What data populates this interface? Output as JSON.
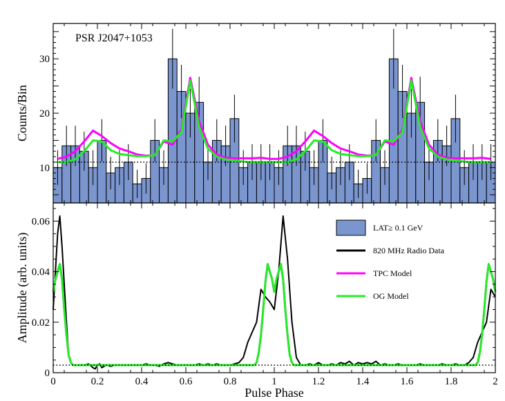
{
  "chart_data": [
    {
      "type": "histogram",
      "title": "PSR J2047+1053",
      "xlabel": "",
      "ylabel": "Counts/Bin",
      "xlim": [
        0,
        2
      ],
      "ylim": [
        3.5,
        36.5
      ],
      "yticks": [
        10,
        20,
        30
      ],
      "bin_width": 0.04,
      "counts": [
        10,
        14,
        14,
        13,
        10,
        15,
        9,
        10,
        11,
        7,
        8,
        15,
        10,
        30,
        24,
        20,
        22,
        11,
        15,
        14,
        19,
        10,
        11,
        11,
        11,
        10,
        14,
        14,
        13,
        10,
        15,
        9,
        10,
        11,
        7,
        8,
        15,
        10,
        30,
        24,
        20,
        22,
        11,
        15,
        14,
        19,
        10,
        11,
        11,
        11
      ],
      "errors": [
        3.2,
        3.7,
        3.7,
        3.6,
        3.2,
        3.9,
        3.0,
        3.2,
        3.3,
        2.6,
        2.8,
        3.9,
        3.2,
        5.5,
        4.9,
        4.5,
        4.7,
        3.3,
        3.9,
        3.7,
        4.4,
        3.2,
        3.3,
        3.3,
        3.3,
        3.2,
        3.7,
        3.7,
        3.6,
        3.2,
        3.9,
        3.0,
        3.2,
        3.3,
        2.6,
        2.8,
        3.9,
        3.2,
        5.5,
        4.9,
        4.5,
        4.7,
        3.3,
        3.9,
        3.7,
        4.4,
        3.2,
        3.3,
        3.3,
        3.3
      ],
      "background_level": 11,
      "series": [
        {
          "name": "TPC Model",
          "color": "#ff00ff",
          "x": [
            0.02,
            0.06,
            0.1,
            0.14,
            0.18,
            0.22,
            0.26,
            0.3,
            0.34,
            0.38,
            0.42,
            0.46,
            0.5,
            0.54,
            0.58,
            0.62,
            0.66,
            0.7,
            0.74,
            0.78,
            0.82,
            0.86,
            0.9,
            0.94,
            0.98,
            1.02,
            1.06,
            1.1,
            1.14,
            1.18,
            1.22,
            1.26,
            1.3,
            1.34,
            1.38,
            1.42,
            1.46,
            1.5,
            1.54,
            1.58,
            1.62,
            1.66,
            1.7,
            1.74,
            1.78,
            1.82,
            1.86,
            1.9,
            1.94,
            1.98
          ],
          "y": [
            11.6,
            12,
            13,
            14.8,
            16.8,
            15.8,
            14.5,
            13.5,
            13,
            12.4,
            12.2,
            12.3,
            14.8,
            14.2,
            17,
            26.5,
            18.5,
            14.2,
            12.4,
            11.8,
            11.7,
            11.7,
            11.7,
            11.8,
            11.6,
            11.6,
            12,
            13,
            14.8,
            16.8,
            15.8,
            14.5,
            13.5,
            13,
            12.4,
            12.2,
            12.3,
            14.8,
            14.2,
            17,
            26.5,
            18.5,
            14.2,
            12.4,
            11.8,
            11.7,
            11.7,
            11.7,
            11.8,
            11.6
          ]
        },
        {
          "name": "OG Model",
          "color": "#22ee22",
          "x": [
            0.02,
            0.06,
            0.1,
            0.14,
            0.18,
            0.22,
            0.26,
            0.3,
            0.34,
            0.38,
            0.42,
            0.46,
            0.5,
            0.54,
            0.58,
            0.62,
            0.66,
            0.7,
            0.74,
            0.78,
            0.82,
            0.86,
            0.9,
            0.94,
            0.98,
            1.02,
            1.06,
            1.1,
            1.14,
            1.18,
            1.22,
            1.26,
            1.3,
            1.34,
            1.38,
            1.42,
            1.46,
            1.5,
            1.54,
            1.58,
            1.62,
            1.66,
            1.7,
            1.74,
            1.78,
            1.82,
            1.86,
            1.9,
            1.94,
            1.98
          ],
          "y": [
            11,
            11,
            11.5,
            13,
            15,
            14.8,
            13.2,
            12.5,
            12.3,
            12.1,
            12.1,
            12.3,
            15,
            14.8,
            16.5,
            26,
            17.5,
            13.5,
            12,
            11.5,
            11.3,
            11.1,
            11,
            11,
            11,
            11,
            11,
            11.5,
            13,
            15,
            14.8,
            13.2,
            12.5,
            12.3,
            12.1,
            12.1,
            12.3,
            15,
            14.8,
            16.5,
            26,
            17.5,
            13.5,
            12,
            11.5,
            11.3,
            11.1,
            11,
            11,
            11
          ]
        }
      ]
    },
    {
      "type": "line",
      "title": "",
      "xlabel": "Pulse Phase",
      "ylabel": "Amplitude (arb. units)",
      "xlim": [
        0,
        2
      ],
      "ylim": [
        0,
        0.0672
      ],
      "xticks": [
        0,
        0.2,
        0.4,
        0.6,
        0.8,
        1,
        1.2,
        1.4,
        1.6,
        1.8,
        2
      ],
      "xtick_labels": [
        "0",
        "0.2",
        "0.4",
        "0.6",
        "0.8",
        "1",
        "1.2",
        "1.4",
        "1.6",
        "1.8",
        "2"
      ],
      "yticks": [
        0,
        0.02,
        0.04,
        0.06
      ],
      "ytick_labels": [
        "0",
        "0.02",
        "0.04",
        "0.06"
      ],
      "baseline_level": 0.003,
      "series": [
        {
          "name": "820 MHz Radio Data",
          "color": "#000000",
          "x": [
            0,
            0.01,
            0.02,
            0.03,
            0.04,
            0.05,
            0.06,
            0.07,
            0.08,
            0.09,
            0.1,
            0.11,
            0.12,
            0.14,
            0.16,
            0.18,
            0.19,
            0.2,
            0.21,
            0.22,
            0.24,
            0.26,
            0.28,
            0.3,
            0.34,
            0.38,
            0.4,
            0.42,
            0.44,
            0.46,
            0.48,
            0.5,
            0.52,
            0.54,
            0.56,
            0.6,
            0.64,
            0.66,
            0.68,
            0.7,
            0.72,
            0.74,
            0.76,
            0.78,
            0.8,
            0.82,
            0.84,
            0.86,
            0.88,
            0.9,
            0.92,
            0.94,
            0.96,
            0.98,
            1,
            1.02,
            1.04,
            1.06,
            1.08,
            1.1,
            1.12,
            1.14,
            1.16,
            1.18,
            1.2,
            1.22,
            1.24,
            1.26,
            1.28,
            1.3,
            1.32,
            1.34,
            1.36,
            1.38,
            1.4,
            1.42,
            1.44,
            1.46,
            1.48,
            1.5,
            1.52,
            1.54,
            1.56,
            1.58,
            1.6,
            1.62,
            1.64,
            1.66,
            1.68,
            1.7,
            1.72,
            1.74,
            1.76,
            1.78,
            1.8,
            1.82,
            1.84,
            1.86,
            1.88,
            1.9,
            1.92,
            1.94,
            1.96,
            1.98,
            2
          ],
          "y": [
            0.025,
            0.04,
            0.055,
            0.062,
            0.05,
            0.035,
            0.02,
            0.007,
            0.004,
            0.003,
            0.003,
            0.003,
            0.003,
            0.003,
            0.0035,
            0.002,
            0.0015,
            0.003,
            0.0035,
            0.002,
            0.003,
            0.0025,
            0.003,
            0.003,
            0.003,
            0.003,
            0.003,
            0.0035,
            0.003,
            0.003,
            0.0025,
            0.0035,
            0.004,
            0.0035,
            0.003,
            0.003,
            0.003,
            0.0035,
            0.003,
            0.0035,
            0.003,
            0.0035,
            0.003,
            0.003,
            0.003,
            0.0035,
            0.004,
            0.006,
            0.012,
            0.016,
            0.02,
            0.033,
            0.03,
            0.028,
            0.025,
            0.04,
            0.062,
            0.045,
            0.02,
            0.006,
            0.003,
            0.003,
            0.0035,
            0.003,
            0.004,
            0.003,
            0.003,
            0.0035,
            0.003,
            0.004,
            0.0035,
            0.0045,
            0.003,
            0.004,
            0.0035,
            0.004,
            0.0035,
            0.0045,
            0.003,
            0.0035,
            0.003,
            0.003,
            0.0035,
            0.003,
            0.003,
            0.003,
            0.003,
            0.0035,
            0.003,
            0.003,
            0.003,
            0.003,
            0.0035,
            0.003,
            0.003,
            0.0035,
            0.003,
            0.003,
            0.004,
            0.006,
            0.012,
            0.016,
            0.02,
            0.033,
            0.03
          ]
        },
        {
          "name": "TPC Model",
          "color": "#ff00ff",
          "x": [
            0,
            0.01,
            0.02,
            0.03,
            0.04,
            0.05,
            0.06,
            0.07,
            0.08,
            0.09,
            0.1,
            0.12,
            0.91,
            0.92,
            0.93,
            0.94,
            0.95,
            0.96,
            0.97,
            0.98,
            0.99,
            1,
            1.01,
            1.02,
            1.03,
            1.04,
            1.05,
            1.06,
            1.07,
            1.08,
            1.09,
            1.1,
            1.12,
            1.91,
            1.92,
            1.93,
            1.94,
            1.95,
            1.96,
            1.97,
            1.98,
            1.99,
            2
          ],
          "y": [
            0.032,
            0.037,
            0.04,
            0.043,
            0.037,
            0.025,
            0.015,
            0.007,
            0.004,
            0.003,
            0.003,
            0.003,
            0.003,
            0.004,
            0.008,
            0.015,
            0.025,
            0.036,
            0.043,
            0.04,
            0.037,
            0.032,
            0.037,
            0.04,
            0.043,
            0.037,
            0.025,
            0.015,
            0.007,
            0.004,
            0.003,
            0.003,
            0.003,
            0.003,
            0.004,
            0.008,
            0.015,
            0.025,
            0.036,
            0.043,
            0.04,
            0.037,
            0.032
          ]
        },
        {
          "name": "OG Model",
          "color": "#22ee22",
          "x": [
            0,
            0.01,
            0.02,
            0.03,
            0.04,
            0.05,
            0.06,
            0.07,
            0.08,
            0.09,
            0.1,
            0.12,
            0.91,
            0.92,
            0.93,
            0.94,
            0.95,
            0.96,
            0.97,
            0.98,
            0.99,
            1,
            1.01,
            1.02,
            1.03,
            1.04,
            1.05,
            1.06,
            1.07,
            1.08,
            1.09,
            1.1,
            1.12,
            1.91,
            1.92,
            1.93,
            1.94,
            1.95,
            1.96,
            1.97,
            1.98,
            1.99,
            2
          ],
          "y": [
            0.032,
            0.037,
            0.04,
            0.043,
            0.037,
            0.025,
            0.015,
            0.007,
            0.004,
            0.003,
            0.003,
            0.003,
            0.003,
            0.004,
            0.008,
            0.015,
            0.025,
            0.036,
            0.043,
            0.04,
            0.037,
            0.032,
            0.037,
            0.04,
            0.043,
            0.037,
            0.025,
            0.015,
            0.007,
            0.004,
            0.003,
            0.003,
            0.003,
            0.003,
            0.004,
            0.008,
            0.015,
            0.025,
            0.036,
            0.043,
            0.04,
            0.037,
            0.032
          ]
        }
      ],
      "legend": {
        "placement": "top-right",
        "entries": [
          {
            "label": "LAT≥ 0.1 GeV",
            "kind": "box",
            "fill": "#7b96cf"
          },
          {
            "label": "820 MHz Radio Data",
            "kind": "line",
            "color": "#000000"
          },
          {
            "label": "TPC Model",
            "kind": "line",
            "color": "#ff00ff"
          },
          {
            "label": "OG Model",
            "kind": "line",
            "color": "#22ee22"
          }
        ]
      }
    }
  ],
  "colors": {
    "histogram_fill": "#7b96cf",
    "frame": "#000000",
    "background": "#ffffff"
  }
}
